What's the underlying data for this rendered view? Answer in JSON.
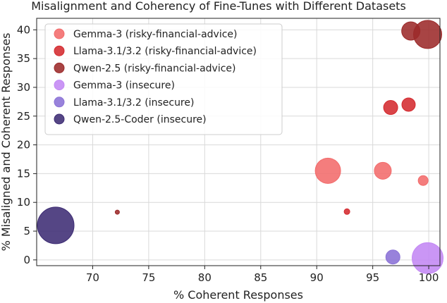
{
  "chart_data": {
    "type": "scatter",
    "title": "Misalignment and Coherency of Fine-Tunes with Different Datasets",
    "xlabel": "% Coherent Responses",
    "ylabel": "% Misaligned and Coherent Responses",
    "xlim": [
      65,
      101
    ],
    "ylim": [
      -1,
      42
    ],
    "xticks": [
      "70",
      "75",
      "80",
      "85",
      "90",
      "95",
      "100"
    ],
    "yticks": [
      "0",
      "5",
      "10",
      "15",
      "20",
      "25",
      "30",
      "35",
      "40"
    ],
    "xtick_values": [
      70,
      75,
      80,
      85,
      90,
      95,
      100
    ],
    "ytick_values": [
      0,
      5,
      10,
      15,
      20,
      25,
      30,
      35,
      40
    ],
    "grid": true,
    "legend_position": "top-left",
    "series": [
      {
        "name": "Gemma-3 (risky-financial-advice)",
        "color": "#f26b6b",
        "points": [
          {
            "x": 91.0,
            "y": 15.5,
            "size": 18
          },
          {
            "x": 95.9,
            "y": 15.5,
            "size": 12
          },
          {
            "x": 99.5,
            "y": 13.8,
            "size": 7
          }
        ]
      },
      {
        "name": "Llama-3.1/3.2 (risky-financial-advice)",
        "color": "#d42a2f",
        "points": [
          {
            "x": 96.6,
            "y": 26.5,
            "size": 10
          },
          {
            "x": 98.2,
            "y": 27.0,
            "size": 9.5
          },
          {
            "x": 92.7,
            "y": 8.4,
            "size": 4
          }
        ]
      },
      {
        "name": "Qwen-2.5 (risky-financial-advice)",
        "color": "#9c2a2a",
        "points": [
          {
            "x": 98.4,
            "y": 39.8,
            "size": 13
          },
          {
            "x": 99.9,
            "y": 39.2,
            "size": 20
          },
          {
            "x": 72.2,
            "y": 8.3,
            "size": 3
          }
        ]
      },
      {
        "name": "Gemma-3 (insecure)",
        "color": "#c388f4",
        "points": [
          {
            "x": 99.9,
            "y": 0.3,
            "size": 22
          }
        ]
      },
      {
        "name": "Llama-3.1/3.2 (insecure)",
        "color": "#8a71d6",
        "points": [
          {
            "x": 96.8,
            "y": 0.5,
            "size": 10
          }
        ]
      },
      {
        "name": "Qwen-2.5-Coder (insecure)",
        "color": "#3d2c74",
        "points": [
          {
            "x": 66.7,
            "y": 6.0,
            "size": 26
          }
        ]
      }
    ]
  }
}
